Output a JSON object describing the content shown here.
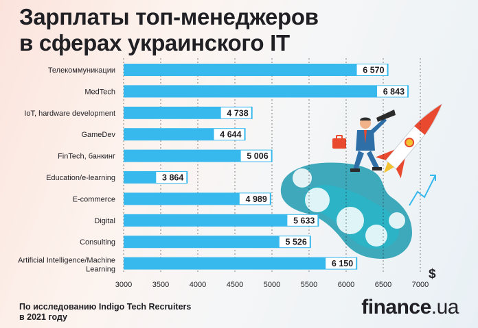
{
  "header": {
    "title_line1": "Зарплаты топ-менеджеров",
    "title_line2": "в сферах украинского IT"
  },
  "footer": {
    "source_line1": "По исследованию Indigo Tech Recruiters",
    "source_line2": "в 2021 году",
    "brand_name": "finance",
    "brand_tld": ".ua"
  },
  "colors": {
    "bar": "#37b9ee",
    "text": "#1f1f24",
    "value_box": "#ffffff",
    "rocket": "#e8492f",
    "plume": "#1f9bb0"
  },
  "illustration": {
    "icons": [
      "businessman-with-telescope",
      "rocket-icon",
      "briefcase-icon",
      "growth-arrow-icon"
    ]
  },
  "chart_data": {
    "type": "bar",
    "orientation": "horizontal",
    "categories": [
      "Телекоммуникации",
      "MedTech",
      "IoT, hardware development",
      "GameDev",
      "FinTech, банкинг",
      "Education/e-learning",
      "E-commerce",
      "Digital",
      "Consulting",
      "Artificial Intelligence/Machine Learning"
    ],
    "values": [
      6570,
      6843,
      4738,
      4644,
      5006,
      3864,
      4989,
      5633,
      5526,
      6150
    ],
    "value_labels": [
      "6 570",
      "6 843",
      "4 738",
      "4 644",
      "5 006",
      "3 864",
      "4 989",
      "5 633",
      "5 526",
      "6 150"
    ],
    "xlim": [
      3000,
      7000
    ],
    "xticks": [
      3000,
      3500,
      4000,
      4500,
      5000,
      5500,
      6000,
      6500,
      7000
    ],
    "x_unit": "$",
    "grid": true
  }
}
